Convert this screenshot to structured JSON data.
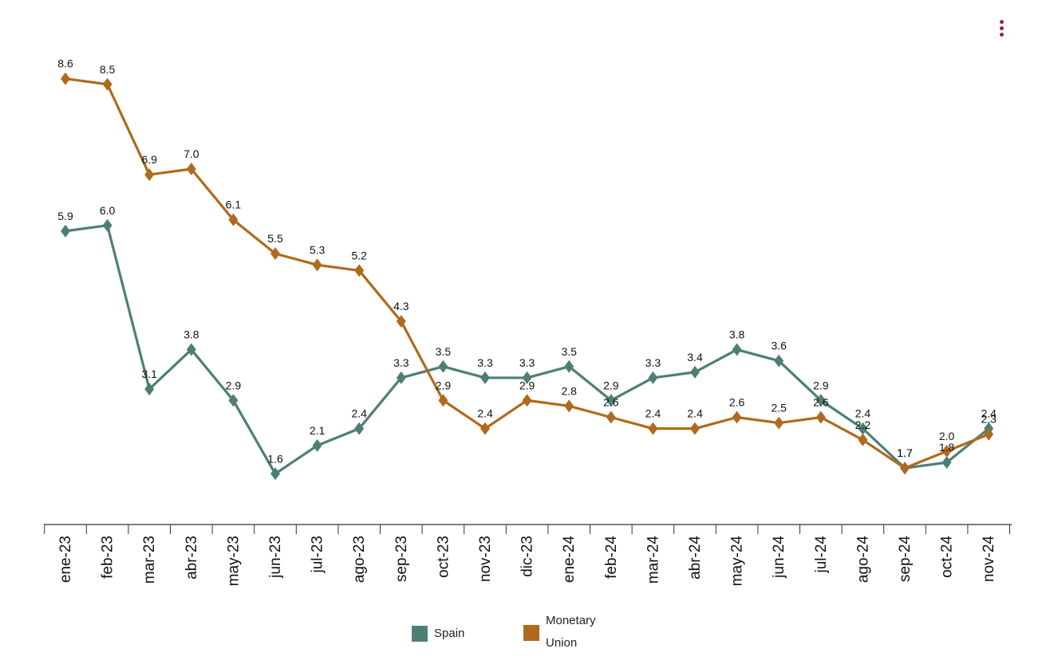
{
  "chart_data": {
    "type": "line",
    "categories": [
      "ene-23",
      "feb-23",
      "mar-23",
      "abr-23",
      "may-23",
      "jun-23",
      "jul-23",
      "ago-23",
      "sep-23",
      "oct-23",
      "nov-23",
      "dic-23",
      "ene-24",
      "feb-24",
      "mar-24",
      "abr-24",
      "may-24",
      "jun-24",
      "jul-24",
      "ago-24",
      "sep-24",
      "oct-24",
      "nov-24"
    ],
    "series": [
      {
        "name": "Spain",
        "color": "#4e7f76",
        "values": [
          5.9,
          6.0,
          3.1,
          3.8,
          2.9,
          1.6,
          2.1,
          2.4,
          3.3,
          3.5,
          3.3,
          3.3,
          3.5,
          2.9,
          3.3,
          3.4,
          3.8,
          3.6,
          2.9,
          2.4,
          1.7,
          1.8,
          2.4
        ],
        "labels": [
          "5.9",
          "6.0",
          "3.1",
          "3.8",
          "2.9",
          "1.6",
          "2.1",
          "2.4",
          "3.3",
          "3.5",
          "3.3",
          "3.3",
          "3.5",
          "2.9",
          "3.3",
          "3.4",
          "3.8",
          "3.6",
          "2.9",
          "2.4",
          "1.7",
          "1.8",
          "2.4"
        ]
      },
      {
        "name": "Monetary Union",
        "color": "#b06a1e",
        "values": [
          8.6,
          8.5,
          6.9,
          7.0,
          6.1,
          5.5,
          5.3,
          5.2,
          4.3,
          2.9,
          2.4,
          2.9,
          2.8,
          2.6,
          2.4,
          2.4,
          2.6,
          2.5,
          2.6,
          2.2,
          1.7,
          2.0,
          2.3
        ],
        "labels": [
          "8.6",
          "8.5",
          "6.9",
          "7.0",
          "6.1",
          "5.5",
          "5.3",
          "5.2",
          "4.3",
          "2.9",
          "2.4",
          "2.9",
          "2.8",
          "2.6",
          "2.4",
          "2.4",
          "2.6",
          "2.5",
          "2.6",
          "2.2",
          "1.7",
          "2.0",
          "2.3"
        ]
      }
    ],
    "legend": {
      "placement": "bottom",
      "items": [
        {
          "label": "Spain",
          "color": "#4e7f76"
        },
        {
          "label_line1": "Monetary",
          "label_line2": "Union",
          "color": "#b06a1e"
        }
      ]
    },
    "ylim": [
      0.7,
      9.5
    ],
    "grid": false
  },
  "menu": {
    "icon": "vertical-ellipsis-icon",
    "color": "#8b2a4a"
  }
}
